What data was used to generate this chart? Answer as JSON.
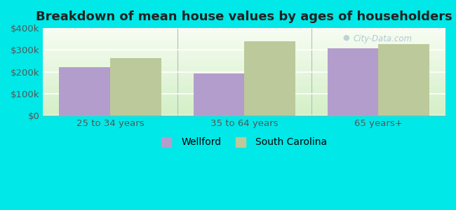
{
  "title": "Breakdown of mean house values by ages of householders",
  "categories": [
    "25 to 34 years",
    "35 to 64 years",
    "65 years+"
  ],
  "wellford": [
    222000,
    193000,
    308000
  ],
  "south_carolina": [
    262000,
    340000,
    328000
  ],
  "wellford_color": "#b39dcc",
  "sc_color": "#bcc99a",
  "background_outer": "#00e8e8",
  "background_inner_gradient_bottom": "#d4edd4",
  "background_inner_gradient_top": "#f5faf0",
  "ylim": [
    0,
    400000
  ],
  "yticks": [
    0,
    100000,
    200000,
    300000,
    400000
  ],
  "ytick_labels": [
    "$0",
    "$100k",
    "$200k",
    "$300k",
    "$400k"
  ],
  "legend_wellford": "Wellford",
  "legend_sc": "South Carolina",
  "bar_width": 0.38,
  "title_fontsize": 13,
  "tick_fontsize": 9.5,
  "legend_fontsize": 10
}
